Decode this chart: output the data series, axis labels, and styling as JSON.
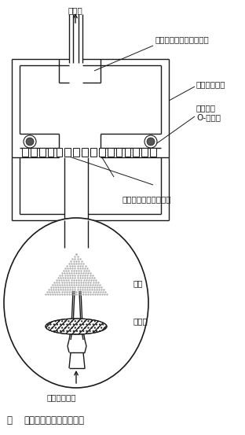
{
  "title_fig": "図",
  "title_text": "ミストチャンバーの概要",
  "labels": {
    "pump": "ポンプ",
    "filter_stopper": "フィルター・ストッパー",
    "holder_body": "ホルダー本体",
    "teflon_oring": "テフロン\nO-リング",
    "teflon_filter": "テフロン・フィルター",
    "main_body": "本体",
    "collection_liquid": "捕集液",
    "sample_air_inlet": "試料空気入口"
  },
  "colors": {
    "background": "#ffffff",
    "lines": "#1a1a1a",
    "stipple": "#999999",
    "hatch": "#888888"
  },
  "fig_width": 3.12,
  "fig_height": 5.53,
  "dpi": 100
}
